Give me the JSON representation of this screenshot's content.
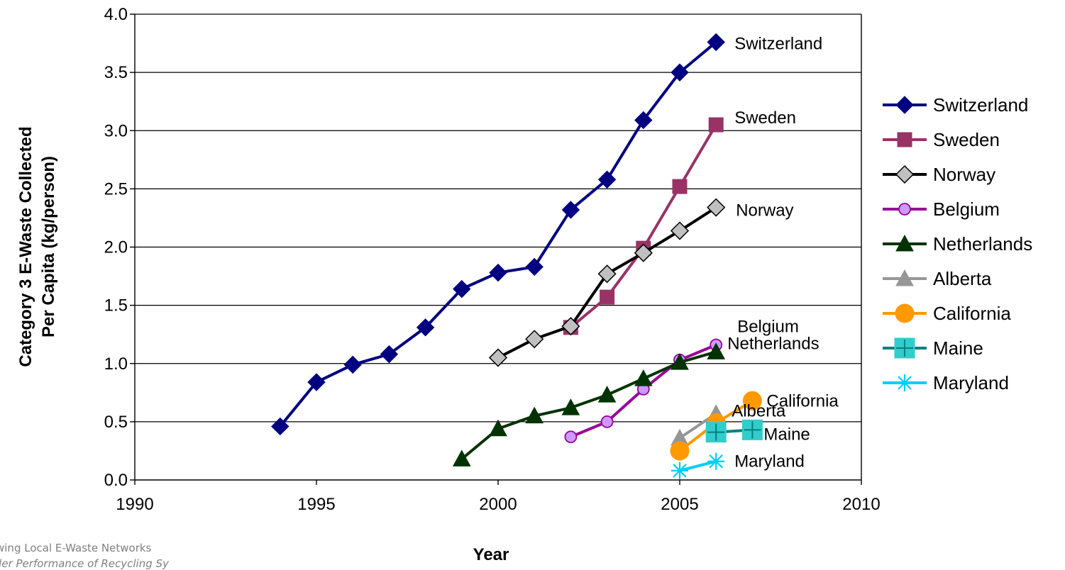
{
  "chart_data": {
    "type": "line",
    "title": "",
    "xlabel": "Year",
    "ylabel_lines": [
      "Category 3 E-Waste Collected",
      "Per Capita (kg/person)"
    ],
    "xlim": [
      1990,
      2010
    ],
    "ylim": [
      0,
      4.0
    ],
    "x_ticks": [
      "1990",
      "1995",
      "2000",
      "2005",
      "2010"
    ],
    "y_ticks": [
      "0.0",
      "0.5",
      "1.0",
      "1.5",
      "2.0",
      "2.5",
      "3.0",
      "3.5",
      "4.0"
    ],
    "grid": "horizontal",
    "legend": "right",
    "series": [
      {
        "name": "Switzerland",
        "color": "#000080",
        "marker": "diamond",
        "label": "Switzerland",
        "x": [
          1994,
          1995,
          1996,
          1997,
          1998,
          1999,
          2000,
          2001,
          2002,
          2003,
          2004,
          2005,
          2006
        ],
        "y": [
          0.46,
          0.84,
          0.99,
          1.08,
          1.31,
          1.64,
          1.78,
          1.83,
          2.32,
          2.58,
          3.09,
          3.5,
          3.76
        ]
      },
      {
        "name": "Sweden",
        "color": "#993366",
        "marker": "square",
        "label": "Sweden",
        "x": [
          2002,
          2003,
          2004,
          2005,
          2006
        ],
        "y": [
          1.31,
          1.57,
          1.99,
          2.52,
          3.05
        ]
      },
      {
        "name": "Norway",
        "color": "#000000",
        "marker": "diamond-gray",
        "label": "Norway",
        "x": [
          2000,
          2001,
          2002,
          2003,
          2004,
          2005,
          2006
        ],
        "y": [
          1.05,
          1.21,
          1.32,
          1.77,
          1.95,
          2.14,
          2.34
        ]
      },
      {
        "name": "Belgium",
        "color": "#990099",
        "marker": "circle-lilac",
        "label": "Belgium",
        "x": [
          2002,
          2003,
          2004,
          2005,
          2006
        ],
        "y": [
          0.37,
          0.5,
          0.78,
          1.03,
          1.16
        ]
      },
      {
        "name": "Netherlands",
        "color": "#003300",
        "marker": "triangle",
        "label": "Netherlands",
        "x": [
          1999,
          2000,
          2001,
          2002,
          2003,
          2004,
          2005,
          2006
        ],
        "y": [
          0.18,
          0.44,
          0.55,
          0.62,
          0.73,
          0.87,
          1.01,
          1.1
        ]
      },
      {
        "name": "Alberta",
        "color": "#969696",
        "marker": "triangle",
        "label": "Alberta",
        "x": [
          2005,
          2006
        ],
        "y": [
          0.36,
          0.57
        ]
      },
      {
        "name": "California",
        "color": "#FF9900",
        "marker": "circle",
        "label": "California",
        "x": [
          2005,
          2006,
          2007
        ],
        "y": [
          0.25,
          0.49,
          0.68
        ]
      },
      {
        "name": "Maine",
        "color": "#008080",
        "marker": "square-plus",
        "label": "Maine",
        "x": [
          2006,
          2007
        ],
        "y": [
          0.41,
          0.43
        ]
      },
      {
        "name": "Maryland",
        "color": "#00CCFF",
        "marker": "star",
        "label": "Maryland",
        "x": [
          2005,
          2006
        ],
        "y": [
          0.08,
          0.16
        ]
      }
    ]
  },
  "footer": {
    "line1": "wing Local E-Waste Networks",
    "line2": "ller Performance of Recycling Sy"
  }
}
